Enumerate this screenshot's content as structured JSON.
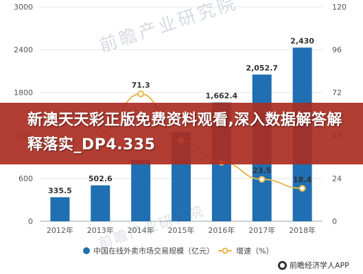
{
  "chart_data": {
    "type": "bar",
    "categories": [
      "2012年",
      "2013年",
      "2014年",
      "2015年",
      "2016年",
      "2017年",
      "2018年"
    ],
    "series": [
      {
        "name": "中国在线外卖市场交易规模（亿元）",
        "type": "bar",
        "axis": "left",
        "color": "#1f6fb2",
        "values": [
          335.5,
          502.6,
          860.9,
          1250.1,
          1662.4,
          2052.7,
          2430
        ]
      },
      {
        "name": "增速（%）",
        "type": "line",
        "axis": "right",
        "color": "#e8b64c",
        "values": [
          null,
          49.8,
          71.3,
          45.2,
          33.0,
          23.5,
          18.4
        ]
      }
    ],
    "bar_labels": [
      "335.5",
      "502.6",
      "",
      "",
      "1,662.4",
      "2,052.7",
      "2,430"
    ],
    "line_labels": [
      "",
      "",
      "71.3",
      "",
      "",
      "23.5",
      "18.4"
    ],
    "y_left": {
      "ticks": [
        "0",
        "600",
        "1200",
        "1800",
        "2400",
        "3000"
      ],
      "ylim": [
        0,
        3000
      ]
    },
    "y_right": {
      "ticks": [
        "0",
        "24",
        "48",
        "72",
        "96",
        "120"
      ],
      "ylim": [
        0,
        120
      ]
    },
    "grid": true,
    "legend_position": "bottom"
  },
  "overlay": {
    "headline": "新澳天天彩正版免费资料观看,深入数据解答解释落实_DP4.335"
  },
  "credit": {
    "text": "前瞻经济学人APP"
  },
  "watermark": {
    "text": "前瞻产业研究院"
  }
}
